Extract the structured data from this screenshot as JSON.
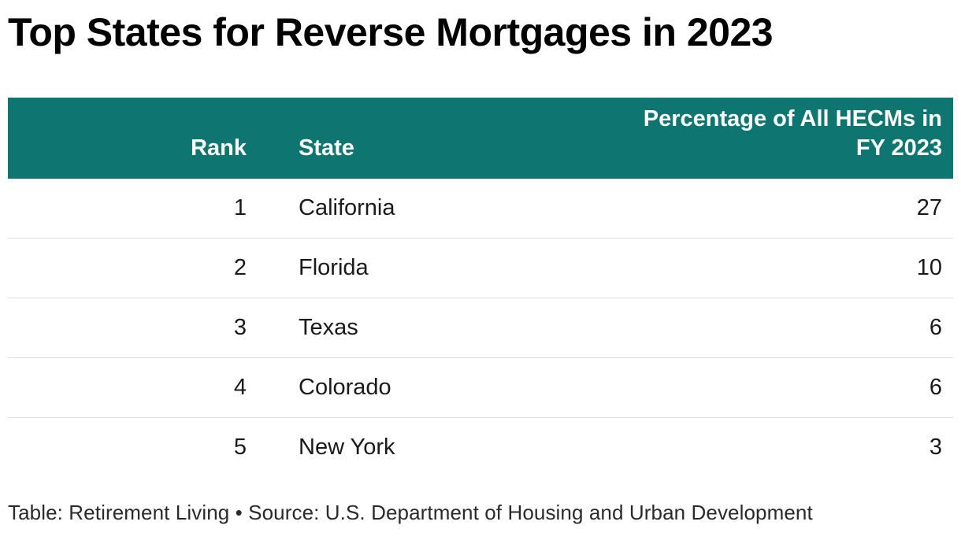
{
  "page": {
    "title": "Top States for Reverse Mortgages in 2023",
    "footer_credit": "Table: Retirement Living • Source: U.S. Department of Housing and Urban Development"
  },
  "table": {
    "columns": [
      {
        "label": "Rank",
        "align": "right"
      },
      {
        "label": "State",
        "align": "left"
      },
      {
        "label": "Percentage of All HECMs in\nFY 2023",
        "align": "right"
      }
    ],
    "rows": [
      {
        "rank": "1",
        "state": "California",
        "pct": "27"
      },
      {
        "rank": "2",
        "state": "Florida",
        "pct": "10"
      },
      {
        "rank": "3",
        "state": "Texas",
        "pct": "6"
      },
      {
        "rank": "4",
        "state": "Colorado",
        "pct": "6"
      },
      {
        "rank": "5",
        "state": "New York",
        "pct": "3"
      }
    ]
  },
  "colors": {
    "header_bg": "#0f7570",
    "header_text": "#ffffff",
    "row_border": "#dcdcdc"
  },
  "chart_data": {
    "type": "table",
    "title": "Top States for Reverse Mortgages in 2023",
    "columns": [
      "Rank",
      "State",
      "Percentage of All HECMs in FY 2023"
    ],
    "rows": [
      [
        1,
        "California",
        27
      ],
      [
        2,
        "Florida",
        10
      ],
      [
        3,
        "Texas",
        6
      ],
      [
        4,
        "Colorado",
        6
      ],
      [
        5,
        "New York",
        3
      ]
    ],
    "credit": "Table: Retirement Living",
    "source": "U.S. Department of Housing and Urban Development"
  }
}
